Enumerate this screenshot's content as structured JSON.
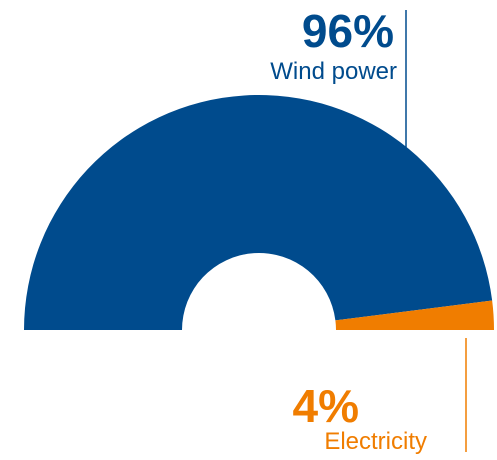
{
  "chart_data": {
    "type": "pie",
    "variant": "semi-donut",
    "slices": [
      {
        "label": "Wind power",
        "value": 96,
        "value_label": "96%",
        "color": "#004b8d"
      },
      {
        "label": "Electricity",
        "value": 4,
        "value_label": "4%",
        "color": "#f07d00"
      }
    ]
  }
}
